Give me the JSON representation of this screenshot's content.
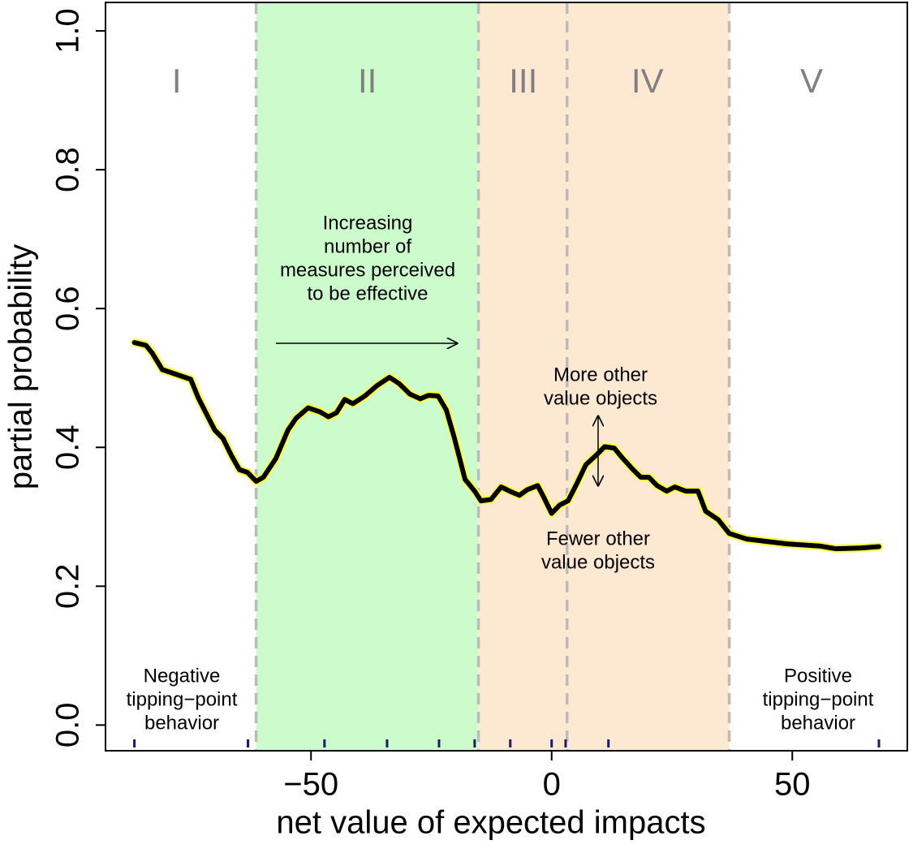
{
  "chart_data": {
    "type": "line",
    "xlabel": "net value of expected impacts",
    "ylabel": "partial probability",
    "xlim": [
      -92.7,
      73.9
    ],
    "ylim": [
      -0.037,
      1.041
    ],
    "xticks": [
      {
        "value": -50,
        "label": "−50"
      },
      0,
      50
    ],
    "yticks": [
      {
        "value": 0,
        "label": "0.0"
      },
      0.2,
      0.4,
      0.6,
      0.8,
      {
        "value": 1,
        "label": "1.0"
      }
    ],
    "bands": [
      {
        "from": -61.4,
        "to": -15.2,
        "color": "#ccfccc"
      },
      {
        "from": -15.2,
        "to": 36.9,
        "color": "#fde8d2"
      }
    ],
    "vlines": [
      -61.4,
      -15.2,
      3.2,
      36.9
    ],
    "vline_color": "#bbbbbb",
    "regions": [
      {
        "label": "I",
        "x": -77.9
      },
      {
        "label": "II",
        "x": -38.3
      },
      {
        "label": "III",
        "x": -5.9
      },
      {
        "label": "IV",
        "x": 19.9
      },
      {
        "label": "V",
        "x": 54.0
      }
    ],
    "region_label_y": 0.924,
    "rug": [
      -86.7,
      -63.1,
      -47.2,
      -34.2,
      -23.4,
      -16.0,
      -8.6,
      0,
      2.9,
      11.8,
      68.0
    ],
    "rug_color": "#1a1a6e",
    "series": [
      {
        "color": "#000000",
        "outline": "#ffff33",
        "x": [
          -86.7,
          -84.3,
          -83.0,
          -80.9,
          -75.0,
          -73.4,
          -71.7,
          -70.0,
          -68.3,
          -66.6,
          -64.9,
          -63.2,
          -61.4,
          -59.9,
          -57.3,
          -54.8,
          -53.1,
          -50.6,
          -48.1,
          -46.4,
          -44.7,
          -43.0,
          -41.3,
          -38.8,
          -36.3,
          -33.7,
          -31.7,
          -29.5,
          -27.3,
          -25.6,
          -23.6,
          -21.9,
          -20.2,
          -18.0,
          -16.0,
          -14.7,
          -12.6,
          -10.5,
          -8.4,
          -6.7,
          -5.1,
          -2.9,
          -1.7,
          0,
          1.7,
          3.4,
          5.1,
          7.1,
          9.3,
          11.0,
          13.0,
          14.8,
          16.9,
          18.5,
          20.2,
          21.9,
          23.9,
          25.6,
          27.8,
          30.4,
          32.0,
          34.6,
          36.9,
          40.5,
          48.9,
          55.6,
          59.0,
          64.1,
          68.0
        ],
        "values": [
          0.551,
          0.547,
          0.536,
          0.512,
          0.498,
          0.471,
          0.448,
          0.425,
          0.413,
          0.389,
          0.368,
          0.364,
          0.351,
          0.357,
          0.384,
          0.425,
          0.442,
          0.457,
          0.451,
          0.444,
          0.45,
          0.469,
          0.463,
          0.474,
          0.489,
          0.501,
          0.492,
          0.477,
          0.47,
          0.475,
          0.474,
          0.454,
          0.413,
          0.354,
          0.337,
          0.323,
          0.325,
          0.343,
          0.336,
          0.331,
          0.339,
          0.345,
          0.329,
          0.305,
          0.317,
          0.323,
          0.346,
          0.375,
          0.389,
          0.401,
          0.399,
          0.384,
          0.368,
          0.357,
          0.357,
          0.345,
          0.337,
          0.343,
          0.337,
          0.337,
          0.308,
          0.296,
          0.276,
          0.268,
          0.261,
          0.258,
          0.254,
          0.255,
          0.257
        ]
      }
    ],
    "annotations": [
      {
        "lines": [
          "Increasing",
          "number of",
          "measures perceived",
          "to be effective"
        ]
      },
      {
        "lines": [
          "More other",
          "value objects"
        ]
      },
      {
        "lines": [
          "Fewer other",
          "value objects"
        ]
      },
      {
        "lines": [
          "Negative",
          "tipping−point",
          "behavior"
        ]
      },
      {
        "lines": [
          "Positive",
          "tipping−point",
          "behavior"
        ]
      }
    ]
  }
}
